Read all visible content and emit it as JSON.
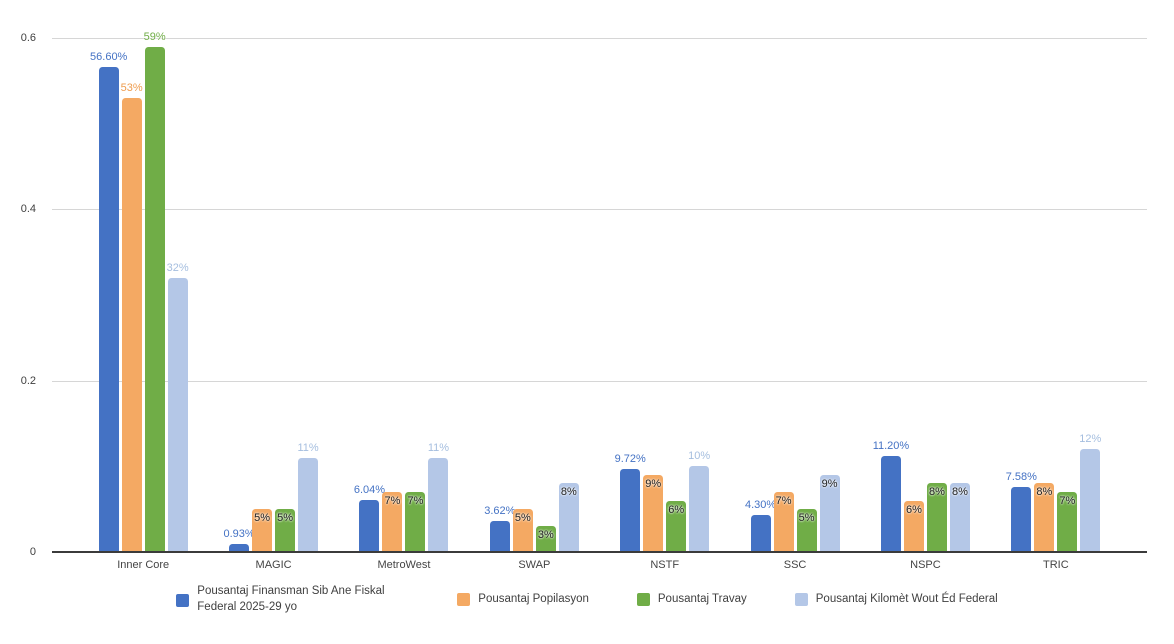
{
  "chart_data": {
    "type": "bar",
    "title": "",
    "categories": [
      "Inner Core",
      "MAGIC",
      "MetroWest",
      "SWAP",
      "NSTF",
      "SSC",
      "NSPC",
      "TRIC"
    ],
    "series": [
      {
        "name": "Pousantaj Finansman Sib Ane Fiskal Federal 2025-29 yo",
        "color": "#4472C4",
        "label_color": "#4472C4",
        "values": [
          0.566,
          0.0093,
          0.0604,
          0.0362,
          0.0972,
          0.043,
          0.112,
          0.0758
        ],
        "labels": [
          "56.60%",
          "0.93%",
          "6.04%",
          "3.62%",
          "9.72%",
          "4.30%",
          "11.20%",
          "7.58%"
        ],
        "label_placement": [
          "above",
          "above",
          "above",
          "above",
          "above",
          "above",
          "above",
          "above"
        ]
      },
      {
        "name": "Pousantaj Popilasyon",
        "color": "#F4A963",
        "label_color": "#EE9C4E",
        "values": [
          0.53,
          0.05,
          0.07,
          0.05,
          0.09,
          0.07,
          0.06,
          0.08
        ],
        "labels": [
          "53%",
          "5%",
          "7%",
          "5%",
          "9%",
          "7%",
          "6%",
          "8%"
        ],
        "label_placement": [
          "above",
          "inside",
          "inside",
          "inside",
          "inside",
          "inside",
          "inside",
          "inside"
        ]
      },
      {
        "name": "Pousantaj Travay",
        "color": "#70AD47",
        "label_color": "#70AD47",
        "values": [
          0.59,
          0.05,
          0.07,
          0.03,
          0.06,
          0.05,
          0.08,
          0.07
        ],
        "labels": [
          "59%",
          "5%",
          "7%",
          "3%",
          "6%",
          "5%",
          "8%",
          "7%"
        ],
        "label_placement": [
          "above",
          "inside",
          "inside",
          "inside",
          "inside",
          "inside",
          "inside",
          "inside"
        ]
      },
      {
        "name": "Pousantaj Kilomèt Wout Éd Federal",
        "color": "#B4C7E7",
        "label_color": "#A5BEDF",
        "values": [
          0.32,
          0.11,
          0.11,
          0.08,
          0.1,
          0.09,
          0.08,
          0.12
        ],
        "labels": [
          "32%",
          "11%",
          "11%",
          "8%",
          "10%",
          "9%",
          "8%",
          "12%"
        ],
        "label_placement": [
          "above",
          "above",
          "above",
          "inside",
          "above",
          "inside",
          "inside",
          "above"
        ]
      }
    ],
    "y_axis": {
      "max": 0.6,
      "ticks": [
        {
          "value": 0,
          "label": "0"
        },
        {
          "value": 0.2,
          "label": "0.2"
        },
        {
          "value": 0.4,
          "label": "0.4"
        },
        {
          "value": 0.6,
          "label": "0.6"
        }
      ]
    },
    "grid": true,
    "legend_position": "bottom",
    "colors": {
      "gridline": "#D6D6D6",
      "axis_line": "#3B3B3B",
      "axis_text": "#404040",
      "inside_label": "#212121",
      "background": "#FFFFFF"
    }
  }
}
